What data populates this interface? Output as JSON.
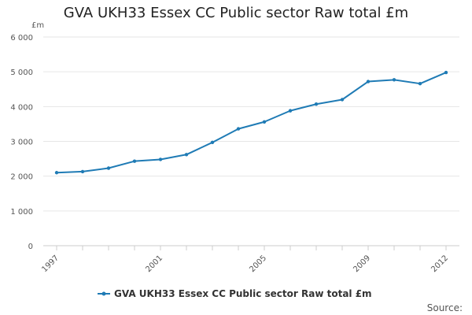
{
  "chart_data": {
    "type": "line",
    "title": "GVA UKH33 Essex CC Public sector Raw total £m",
    "unit_label": "£m",
    "xlabel": "",
    "ylabel": "",
    "x": [
      1997,
      1998,
      1999,
      2000,
      2001,
      2002,
      2003,
      2004,
      2005,
      2006,
      2007,
      2008,
      2009,
      2010,
      2011,
      2012
    ],
    "x_tick_labels": [
      "1997",
      "2001",
      "2005",
      "2009",
      "2012"
    ],
    "ylim": [
      0,
      6000
    ],
    "y_ticks": [
      0,
      1000,
      2000,
      3000,
      4000,
      5000,
      6000
    ],
    "y_tick_labels": [
      "0",
      "1 000",
      "2 000",
      "3 000",
      "4 000",
      "5 000",
      "6 000"
    ],
    "grid": true,
    "legend_position": "bottom",
    "series": [
      {
        "name": "GVA UKH33 Essex CC Public sector Raw total £m",
        "color": "#1f7bb5",
        "values": [
          2100,
          2130,
          2230,
          2430,
          2480,
          2620,
          2970,
          3360,
          3560,
          3880,
          4070,
          4200,
          4720,
          4770,
          4660,
          4980
        ]
      }
    ],
    "source_label": "Source:"
  }
}
